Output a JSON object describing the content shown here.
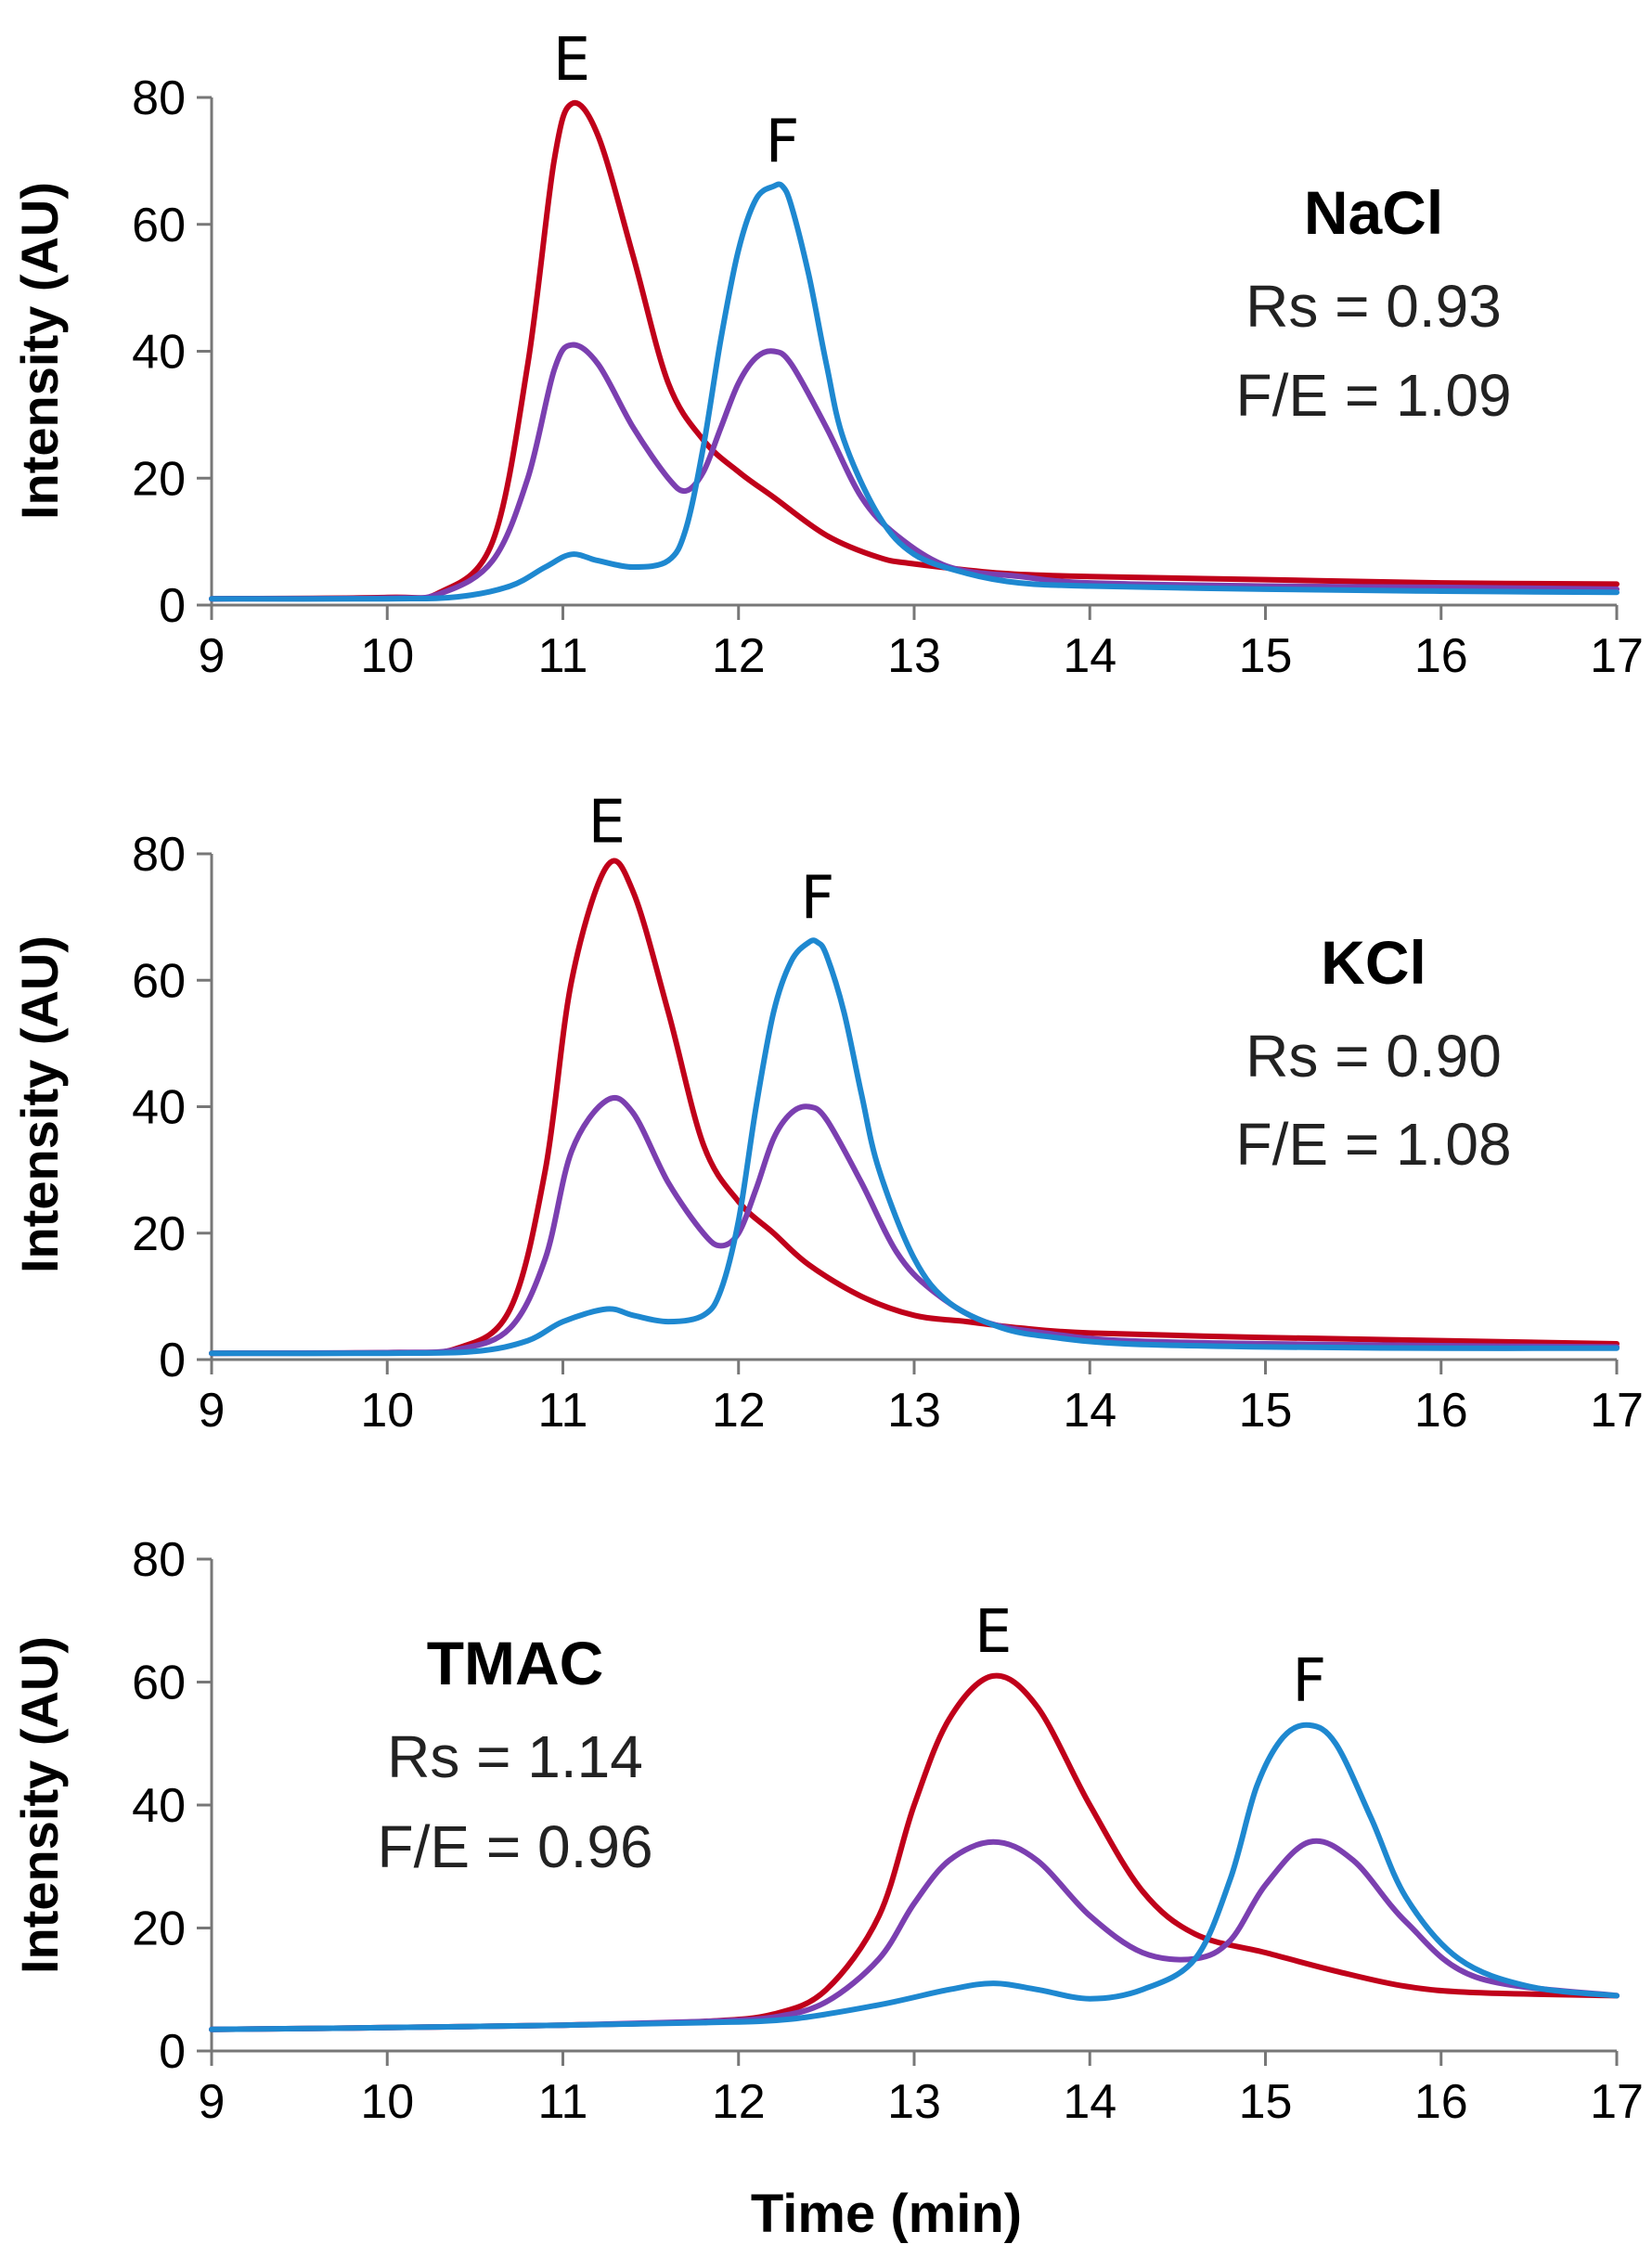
{
  "figure": {
    "xlabel": "Time (min)",
    "ylabel": "Intensity (AU)"
  },
  "series_colors": {
    "E": "#C0001A",
    "mix": "#7B3FB0",
    "F": "#1E88D0"
  },
  "chart_data": [
    {
      "type": "line",
      "salt": "NaCl",
      "Rs": "Rs = 0.93",
      "FE": "F/E = 1.09",
      "xlim": [
        9,
        17
      ],
      "ylim": [
        0,
        80
      ],
      "xticks": [
        "9",
        "10",
        "11",
        "12",
        "13",
        "14",
        "15",
        "16",
        "17"
      ],
      "yticks": [
        "0",
        "20",
        "40",
        "60",
        "80"
      ],
      "peaks": [
        {
          "label": "E",
          "x": 11.05,
          "y": 79
        },
        {
          "label": "F",
          "x": 12.25,
          "y": 66
        }
      ],
      "series": [
        {
          "name": "E",
          "color": "#C0001A",
          "x": [
            9,
            10,
            10.3,
            10.6,
            10.8,
            10.95,
            11.05,
            11.2,
            11.4,
            11.6,
            11.8,
            12,
            12.2,
            12.5,
            12.8,
            13,
            13.5,
            14,
            15,
            16,
            17
          ],
          "y": [
            1,
            1.2,
            2,
            10,
            38,
            70,
            79,
            74,
            55,
            35,
            26,
            21,
            17,
            11,
            7.5,
            6.5,
            5,
            4.5,
            4,
            3.5,
            3.3
          ]
        },
        {
          "name": "mix",
          "color": "#7B3FB0",
          "x": [
            9,
            10,
            10.3,
            10.6,
            10.8,
            10.95,
            11.05,
            11.2,
            11.4,
            11.6,
            11.7,
            11.8,
            11.9,
            12,
            12.1,
            12.2,
            12.3,
            12.5,
            12.7,
            12.9,
            13.2,
            13.6,
            14,
            15,
            16,
            17
          ],
          "y": [
            1,
            1.1,
            1.8,
            7,
            20,
            37,
            41,
            38,
            28,
            20,
            18,
            21,
            28,
            35,
            39,
            40,
            38,
            28,
            17,
            11,
            6,
            4.5,
            3.5,
            3,
            2.8,
            2.5
          ]
        },
        {
          "name": "F",
          "color": "#1E88D0",
          "x": [
            9,
            10,
            10.4,
            10.7,
            10.9,
            11.05,
            11.2,
            11.4,
            11.6,
            11.7,
            11.8,
            11.9,
            12,
            12.1,
            12.2,
            12.25,
            12.3,
            12.4,
            12.5,
            12.6,
            12.8,
            13,
            13.3,
            13.6,
            14,
            15,
            16,
            17
          ],
          "y": [
            1,
            1,
            1.3,
            3,
            6,
            8,
            7,
            6,
            7,
            12,
            25,
            42,
            56,
            64,
            66,
            66,
            63,
            52,
            38,
            26,
            14,
            8,
            5,
            3.5,
            3,
            2.5,
            2.2,
            2
          ]
        }
      ]
    },
    {
      "type": "line",
      "salt": "KCl",
      "Rs": "Rs = 0.90",
      "FE": "F/E = 1.08",
      "xlim": [
        9,
        17
      ],
      "ylim": [
        0,
        80
      ],
      "xticks": [
        "9",
        "10",
        "11",
        "12",
        "13",
        "14",
        "15",
        "16",
        "17"
      ],
      "yticks": [
        "0",
        "20",
        "40",
        "60",
        "80"
      ],
      "peaks": [
        {
          "label": "E",
          "x": 11.25,
          "y": 78
        },
        {
          "label": "F",
          "x": 12.45,
          "y": 66
        }
      ],
      "series": [
        {
          "name": "E",
          "color": "#C0001A",
          "x": [
            9,
            10,
            10.4,
            10.7,
            10.9,
            11.05,
            11.25,
            11.4,
            11.6,
            11.8,
            12,
            12.2,
            12.4,
            12.7,
            13,
            13.3,
            13.6,
            14,
            15,
            16,
            17
          ],
          "y": [
            1,
            1.1,
            1.8,
            8,
            30,
            60,
            78,
            74,
            55,
            34,
            25,
            20,
            15,
            10,
            7,
            6,
            5,
            4.2,
            3.5,
            3,
            2.5
          ]
        },
        {
          "name": "mix",
          "color": "#7B3FB0",
          "x": [
            9,
            10,
            10.4,
            10.7,
            10.9,
            11.05,
            11.25,
            11.4,
            11.6,
            11.8,
            11.9,
            12,
            12.1,
            12.2,
            12.3,
            12.4,
            12.5,
            12.7,
            12.9,
            13.1,
            13.4,
            13.8,
            14.2,
            15,
            16,
            17
          ],
          "y": [
            1,
            1.1,
            1.6,
            5,
            16,
            33,
            41,
            39,
            28,
            20,
            18,
            20,
            27,
            35,
            39,
            40,
            38,
            28,
            17,
            11,
            6,
            4,
            3,
            2.5,
            2.2,
            2
          ]
        },
        {
          "name": "F",
          "color": "#1E88D0",
          "x": [
            9,
            10,
            10.5,
            10.8,
            11,
            11.25,
            11.4,
            11.6,
            11.8,
            11.9,
            12,
            12.1,
            12.2,
            12.3,
            12.4,
            12.45,
            12.5,
            12.6,
            12.7,
            12.8,
            13,
            13.2,
            13.5,
            13.8,
            14.2,
            15,
            16,
            17
          ],
          "y": [
            1,
            1,
            1.3,
            3,
            6,
            8,
            7,
            6,
            7,
            11,
            22,
            40,
            55,
            63,
            66,
            66,
            64,
            55,
            42,
            30,
            16,
            9,
            5,
            3.5,
            2.5,
            2,
            1.8,
            1.8
          ]
        }
      ]
    },
    {
      "type": "line",
      "salt": "TMAC",
      "Rs": "Rs = 1.14",
      "FE": "F/E = 0.96",
      "xlim": [
        9,
        17
      ],
      "ylim": [
        0,
        80
      ],
      "xticks": [
        "9",
        "10",
        "11",
        "12",
        "13",
        "14",
        "15",
        "16",
        "17"
      ],
      "yticks": [
        "0",
        "20",
        "40",
        "60",
        "80"
      ],
      "peaks": [
        {
          "label": "E",
          "x": 13.45,
          "y": 61
        },
        {
          "label": "F",
          "x": 15.25,
          "y": 53
        }
      ],
      "series": [
        {
          "name": "E",
          "color": "#C0001A",
          "x": [
            9,
            10,
            11,
            11.8,
            12.2,
            12.5,
            12.8,
            13,
            13.2,
            13.45,
            13.7,
            14,
            14.3,
            14.6,
            15,
            15.4,
            15.8,
            16.2,
            17
          ],
          "y": [
            3.5,
            3.8,
            4.2,
            4.8,
            6,
            10,
            22,
            40,
            54,
            61,
            56,
            40,
            26,
            19,
            16,
            13,
            10.5,
            9.5,
            9
          ]
        },
        {
          "name": "mix",
          "color": "#7B3FB0",
          "x": [
            9,
            10,
            11,
            11.8,
            12.2,
            12.5,
            12.8,
            13,
            13.2,
            13.45,
            13.7,
            14,
            14.3,
            14.6,
            14.8,
            15,
            15.25,
            15.5,
            15.8,
            16.2,
            17
          ],
          "y": [
            3.5,
            3.8,
            4.2,
            4.8,
            5.5,
            8,
            15,
            24,
            31,
            34,
            31,
            22,
            16,
            15,
            18,
            27,
            34,
            31,
            21,
            12,
            9
          ]
        },
        {
          "name": "F",
          "color": "#1E88D0",
          "x": [
            9,
            10,
            11,
            11.8,
            12.3,
            12.8,
            13.2,
            13.45,
            13.7,
            14,
            14.3,
            14.6,
            14.8,
            14.95,
            15.1,
            15.25,
            15.4,
            15.6,
            15.8,
            16.1,
            16.5,
            17
          ],
          "y": [
            3.5,
            3.8,
            4.2,
            4.6,
            5.2,
            7.5,
            10,
            11,
            10,
            8.5,
            10,
            15,
            28,
            43,
            51,
            53,
            50,
            38,
            25,
            15,
            10.5,
            9
          ]
        }
      ]
    }
  ]
}
